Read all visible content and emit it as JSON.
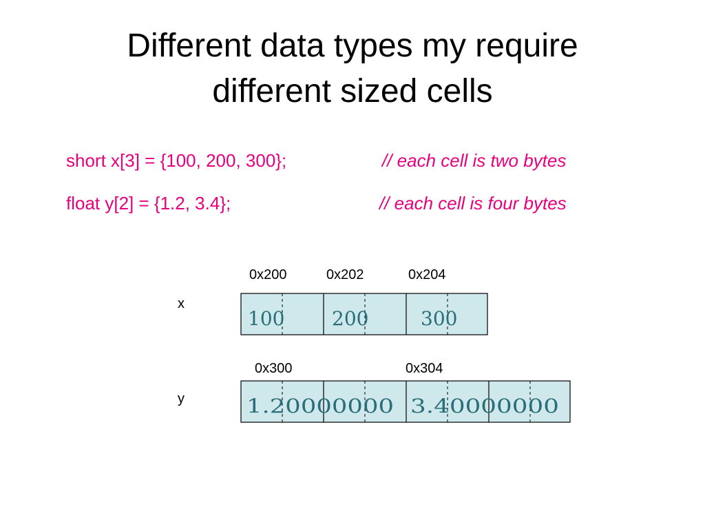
{
  "title": {
    "lines": [
      "Different data types my require",
      "different sized cells"
    ]
  },
  "code": [
    {
      "statement": "short x[3] = {100, 200, 300};",
      "comment": "// each cell is two bytes"
    },
    {
      "statement": "float y[2] = {1.2, 3.4};",
      "comment": "// each cell is four bytes"
    }
  ],
  "memory": {
    "x": {
      "label": "x",
      "addresses": [
        "0x200",
        "0x202",
        "0x204"
      ],
      "values": [
        "100",
        "200",
        "300"
      ]
    },
    "y": {
      "label": "y",
      "addresses": [
        "0x300",
        "0x304"
      ],
      "values": [
        "1.20000000",
        "3.40000000"
      ]
    }
  }
}
